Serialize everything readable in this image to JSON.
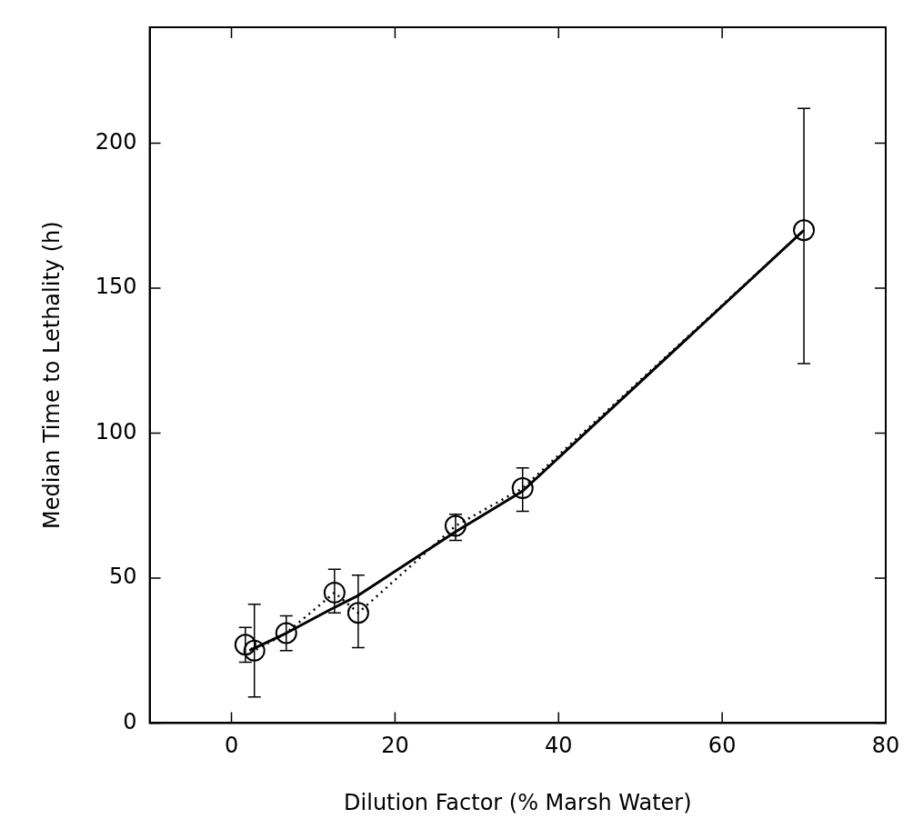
{
  "chart_data": {
    "type": "line",
    "xlabel": "Dilution Factor (% Marsh Water)",
    "ylabel": "Median Time to Lethality (h)",
    "xlim": [
      -10,
      80
    ],
    "xticks": [
      0,
      20,
      40,
      60,
      80
    ],
    "ylim": [
      0,
      240
    ],
    "yticks": [
      0,
      50,
      100,
      150,
      200
    ],
    "grid": false,
    "legend": false,
    "series": [
      {
        "color": "#000000",
        "marker": "circle",
        "line_style": "dotted",
        "x": [
          1.7,
          2.8,
          6.7,
          12.6,
          15.5,
          27.4,
          35.6,
          70
        ],
        "values": [
          27,
          25,
          31,
          45,
          38,
          68,
          81,
          170
        ],
        "errors": [
          [
            21,
            33
          ],
          [
            9,
            41
          ],
          [
            25,
            37
          ],
          [
            38,
            53
          ],
          [
            26,
            51
          ],
          [
            63,
            72
          ],
          [
            73,
            88
          ],
          [
            124,
            212
          ]
        ]
      },
      {
        "color": "#000000",
        "marker": "none",
        "line_style": "solid",
        "x": [
          2.2,
          6.7,
          12,
          15.5,
          27.4,
          35.6,
          70
        ],
        "values": [
          25,
          31,
          39,
          44,
          66,
          80,
          170
        ]
      }
    ]
  }
}
